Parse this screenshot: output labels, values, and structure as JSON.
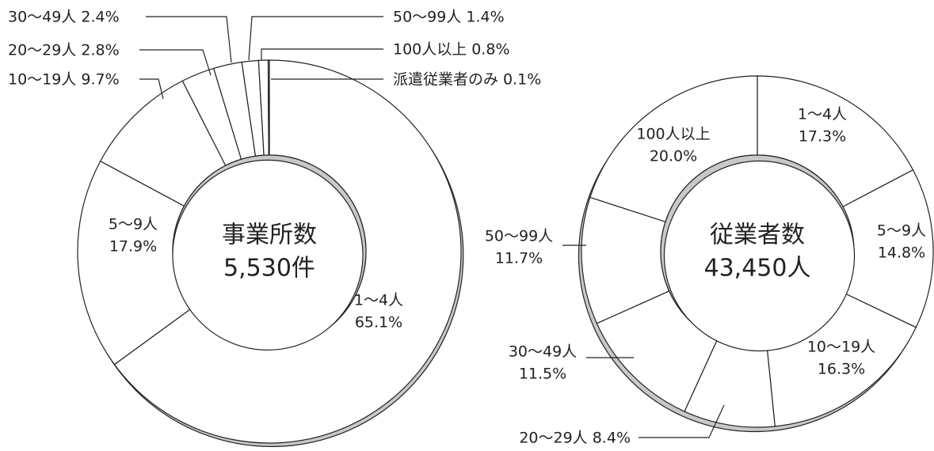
{
  "chart_data": [
    {
      "type": "pie",
      "variant": "donut",
      "center_title": "事業所数",
      "center_value": "5,530件",
      "slices": [
        {
          "name": "1〜4人",
          "value": 65.1,
          "label": "65.1%"
        },
        {
          "name": "5〜9人",
          "value": 17.9,
          "label": "17.9%"
        },
        {
          "name": "10〜19人",
          "value": 9.7,
          "label": "9.7%"
        },
        {
          "name": "20〜29人",
          "value": 2.8,
          "label": "2.8%"
        },
        {
          "name": "30〜49人",
          "value": 2.4,
          "label": "2.4%"
        },
        {
          "name": "50〜99人",
          "value": 1.4,
          "label": "1.4%"
        },
        {
          "name": "100人以上",
          "value": 0.8,
          "label": "0.8%"
        },
        {
          "name": "派遣従業者のみ",
          "value": 0.1,
          "label": "0.1%"
        }
      ]
    },
    {
      "type": "pie",
      "variant": "donut",
      "center_title": "従業者数",
      "center_value": "43,450人",
      "slices": [
        {
          "name": "1〜4人",
          "value": 17.3,
          "label": "17.3%"
        },
        {
          "name": "5〜9人",
          "value": 14.8,
          "label": "14.8%"
        },
        {
          "name": "10〜19人",
          "value": 16.3,
          "label": "16.3%"
        },
        {
          "name": "20〜29人",
          "value": 8.4,
          "label": "8.4%"
        },
        {
          "name": "30〜49人",
          "value": 11.5,
          "label": "11.5%"
        },
        {
          "name": "50〜99人",
          "value": 11.7,
          "label": "11.7%"
        },
        {
          "name": "100人以上",
          "value": 20.0,
          "label": "20.0%"
        }
      ]
    }
  ],
  "colors": {
    "slice_fill": "#ffffff",
    "outline": "#222222",
    "side_fill": "#c8c8c8"
  }
}
